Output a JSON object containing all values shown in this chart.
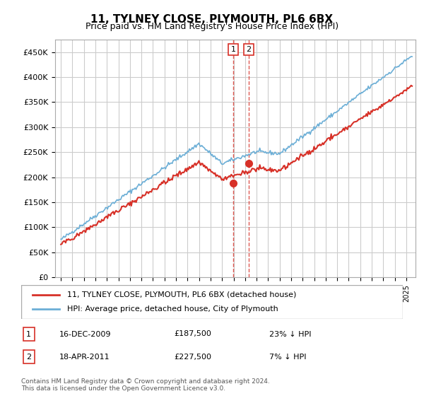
{
  "title": "11, TYLNEY CLOSE, PLYMOUTH, PL6 6BX",
  "subtitle": "Price paid vs. HM Land Registry's House Price Index (HPI)",
  "ylabel_ticks": [
    "£0",
    "£50K",
    "£100K",
    "£150K",
    "£200K",
    "£250K",
    "£300K",
    "£350K",
    "£400K",
    "£450K"
  ],
  "ytick_values": [
    0,
    50000,
    100000,
    150000,
    200000,
    250000,
    300000,
    350000,
    400000,
    450000
  ],
  "ylim": [
    0,
    475000
  ],
  "transactions": [
    {
      "date_num": 2009.96,
      "price": 187500,
      "label": "1"
    },
    {
      "date_num": 2011.3,
      "price": 227500,
      "label": "2"
    }
  ],
  "legend_line1": "11, TYLNEY CLOSE, PLYMOUTH, PL6 6BX (detached house)",
  "legend_line2": "HPI: Average price, detached house, City of Plymouth",
  "table_rows": [
    {
      "num": "1",
      "date": "16-DEC-2009",
      "price": "£187,500",
      "hpi": "23% ↓ HPI"
    },
    {
      "num": "2",
      "date": "18-APR-2011",
      "price": "£227,500",
      "hpi": "7% ↓ HPI"
    }
  ],
  "footer": "Contains HM Land Registry data © Crown copyright and database right 2024.\nThis data is licensed under the Open Government Licence v3.0.",
  "hpi_color": "#6baed6",
  "price_color": "#d73027",
  "vline_color": "#d73027",
  "bg_color": "#ffffff",
  "grid_color": "#cccccc"
}
